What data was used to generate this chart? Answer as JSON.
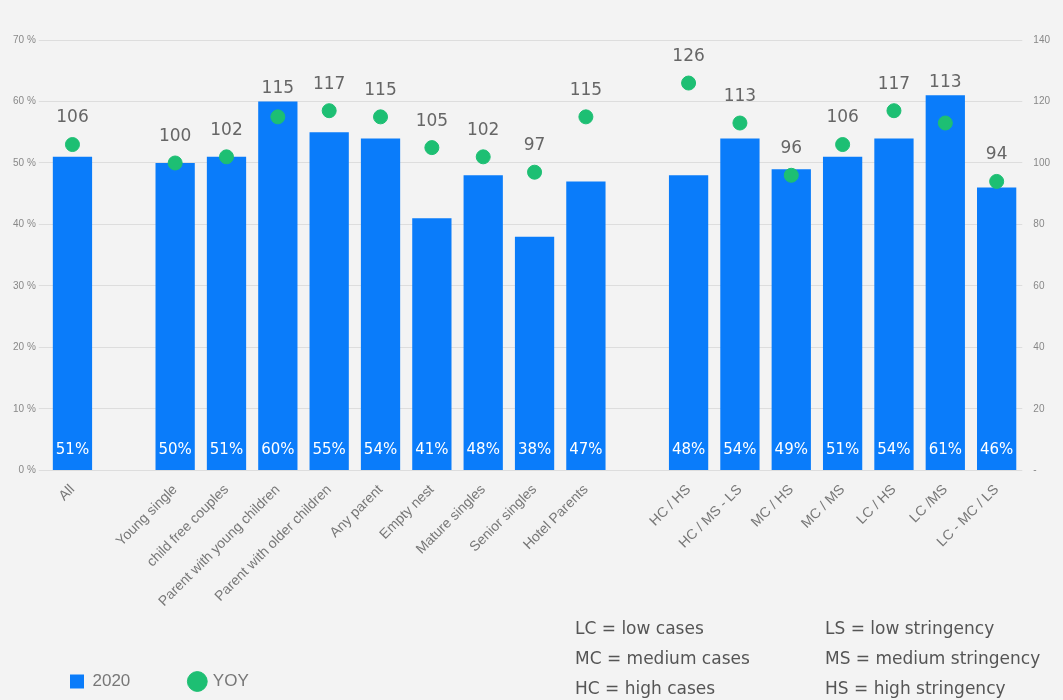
{
  "chart_data": {
    "type": "bar",
    "categories": [
      "All",
      null,
      "Young single",
      "child free couples",
      "Parent with young children",
      "Parent with older children",
      "Any parent",
      "Empty nest",
      "Mature singles",
      "Senior singles",
      "Hotel Parents",
      null,
      "HC / HS",
      "HC / MS - LS",
      "MC / HS",
      "MC / MS",
      "LC / HS",
      "LC /MS",
      "LC - MC / LS"
    ],
    "series": [
      {
        "name": "2020",
        "color": "#0a7cfa",
        "values": [
          51,
          null,
          50,
          51,
          60,
          55,
          54,
          41,
          48,
          38,
          47,
          null,
          48,
          54,
          49,
          51,
          54,
          61,
          46
        ],
        "value_labels": [
          "51%",
          null,
          "50%",
          "51%",
          "60%",
          "55%",
          "54%",
          "41%",
          "48%",
          "38%",
          "47%",
          null,
          "48%",
          "54%",
          "49%",
          "51%",
          "54%",
          "61%",
          "46%"
        ]
      },
      {
        "name": "YOY",
        "type": "scatter",
        "axis": "y2",
        "color": "#1dbf73",
        "values": [
          106,
          null,
          100,
          102,
          115,
          117,
          115,
          105,
          102,
          97,
          115,
          null,
          126,
          113,
          96,
          106,
          117,
          113,
          94
        ],
        "value_labels": [
          "106",
          null,
          "100",
          "102",
          "115",
          "117",
          "115",
          "105",
          "102",
          "97",
          "115",
          null,
          "126",
          "113",
          "96",
          "106",
          "117",
          "113",
          "94"
        ]
      }
    ],
    "ylim": [
      0,
      70
    ],
    "yticks": [
      {
        "value": 0,
        "label": "0 %"
      },
      {
        "value": 10,
        "label": "10 %"
      },
      {
        "value": 20,
        "label": "20 %"
      },
      {
        "value": 30,
        "label": "30 %"
      },
      {
        "value": 40,
        "label": "40 %"
      },
      {
        "value": 50,
        "label": "50 %"
      },
      {
        "value": 60,
        "label": "60 %"
      },
      {
        "value": 70,
        "label": "70 %"
      }
    ],
    "y2lim": [
      0,
      140
    ],
    "y2ticks": [
      {
        "value": 0,
        "label": "-"
      },
      20,
      40,
      60,
      80,
      100,
      120,
      140
    ],
    "grid": "y",
    "legend": "bottom left",
    "marker": "circle",
    "annotations": [
      "LC = low cases",
      "MC = medium cases",
      "HC = high cases",
      "LS = low stringency",
      "MS = medium stringency",
      "HS = high stringency"
    ]
  }
}
